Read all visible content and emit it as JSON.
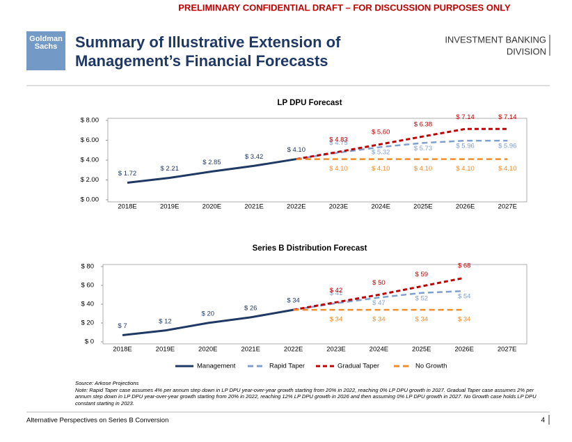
{
  "banner": "PRELIMINARY CONFIDENTIAL DRAFT – FOR DISCUSSION PURPOSES ONLY",
  "logo": [
    "Goldman",
    "Sachs"
  ],
  "title": [
    "Summary of Illustrative Extension of",
    "Management’s Financial Forecasts"
  ],
  "division": [
    "INVESTMENT BANKING",
    "DIVISION"
  ],
  "source": "Source: Arkose Projections",
  "note": "Note: Rapid Taper case assumes 4% per annum step down in LP DPU year-over-year growth starting from 20% in 2022, reaching 0% LP DPU growth in 2027. Gradual Taper case assumes 2% per annum step down in LP DPU year-over-year growth starting from 20% in 2022, reaching 12% LP DPU growth in 2026 and then assuming 0% LP DPU growth in 2027. No Growth case holds LP DPU constant starting in 2023.",
  "footer": "Alternative Perspectives on Series B Conversion",
  "page_number": "4",
  "chart_data": [
    {
      "type": "line",
      "title": "LP DPU Forecast",
      "categories": [
        "2018E",
        "2019E",
        "2020E",
        "2021E",
        "2022E",
        "2023E",
        "2024E",
        "2025E",
        "2026E",
        "2027E"
      ],
      "ylim": [
        0,
        8
      ],
      "yticks": [
        {
          "value": 0,
          "label": "$ 0.00"
        },
        {
          "value": 2,
          "label": "$ 2.00"
        },
        {
          "value": 4,
          "label": "$ 4.00"
        },
        {
          "value": 6,
          "label": "$ 6.00"
        },
        {
          "value": 8,
          "label": "$ 8.00"
        }
      ],
      "series": [
        {
          "color": "#1f3864",
          "values": [
            1.72,
            2.21,
            2.85,
            3.42,
            4.1,
            null,
            null,
            null,
            null,
            null
          ],
          "value_labels": [
            "$ 1.72",
            "$ 2.21",
            "$ 2.85",
            "$ 3.42",
            "$ 4.10",
            null,
            null,
            null,
            null,
            null
          ]
        },
        {
          "color": "#7f9fcf",
          "values": [
            null,
            null,
            null,
            null,
            4.1,
            4.75,
            5.32,
            5.73,
            5.96,
            5.96
          ],
          "value_labels": [
            null,
            null,
            null,
            null,
            null,
            "$ 4.75",
            "$ 5.32",
            "$ 5.73",
            "$ 5.96",
            "$ 5.96"
          ]
        },
        {
          "color": "#c00000",
          "values": [
            null,
            null,
            null,
            null,
            4.1,
            4.83,
            5.6,
            6.38,
            7.14,
            7.14
          ],
          "value_labels": [
            null,
            null,
            null,
            null,
            null,
            "$ 4.83",
            "$ 5.60",
            "$ 6.38",
            "$ 7.14",
            "$ 7.14"
          ]
        },
        {
          "color": "#f28c28",
          "values": [
            null,
            null,
            null,
            null,
            4.1,
            4.1,
            4.1,
            4.1,
            4.1,
            4.1
          ],
          "value_labels": [
            null,
            null,
            null,
            null,
            null,
            "$ 4.10",
            "$ 4.10",
            "$ 4.10",
            "$ 4.10",
            "$ 4.10"
          ]
        }
      ]
    },
    {
      "type": "line",
      "title": "Series B Distribution Forecast",
      "categories": [
        "2018E",
        "2019E",
        "2020E",
        "2021E",
        "2022E",
        "2023E",
        "2024E",
        "2025E",
        "2026E",
        "2027E"
      ],
      "ylim": [
        0,
        80
      ],
      "yticks": [
        {
          "value": 0,
          "label": "$ 0"
        },
        {
          "value": 20,
          "label": "$ 20"
        },
        {
          "value": 40,
          "label": "$ 40"
        },
        {
          "value": 60,
          "label": "$ 60"
        },
        {
          "value": 80,
          "label": "$ 80"
        }
      ],
      "series": [
        {
          "name": "Management",
          "color": "#1f3864",
          "values": [
            7,
            12,
            20,
            26,
            34,
            null,
            null,
            null,
            null,
            null
          ],
          "value_labels": [
            "$ 7",
            "$ 12",
            "$ 20",
            "$ 26",
            "$ 34",
            null,
            null,
            null,
            null,
            null
          ]
        },
        {
          "name": "Rapid Taper",
          "color": "#7f9fcf",
          "values": [
            null,
            null,
            null,
            null,
            34,
            41,
            47,
            52,
            54,
            null
          ],
          "value_labels": [
            null,
            null,
            null,
            null,
            null,
            "$ 41",
            "$ 47",
            "$ 52",
            "$ 54",
            null
          ]
        },
        {
          "name": "Gradual Taper",
          "color": "#c00000",
          "values": [
            null,
            null,
            null,
            null,
            34,
            42,
            50,
            59,
            68,
            null
          ],
          "value_labels": [
            null,
            null,
            null,
            null,
            null,
            "$ 42",
            "$ 50",
            "$ 59",
            "$ 68",
            null
          ]
        },
        {
          "name": "No Growth",
          "color": "#f28c28",
          "values": [
            null,
            null,
            null,
            null,
            34,
            34,
            34,
            34,
            34,
            null
          ],
          "value_labels": [
            null,
            null,
            null,
            null,
            null,
            "$ 34",
            "$ 34",
            "$ 34",
            "$ 34",
            null
          ]
        }
      ]
    }
  ]
}
